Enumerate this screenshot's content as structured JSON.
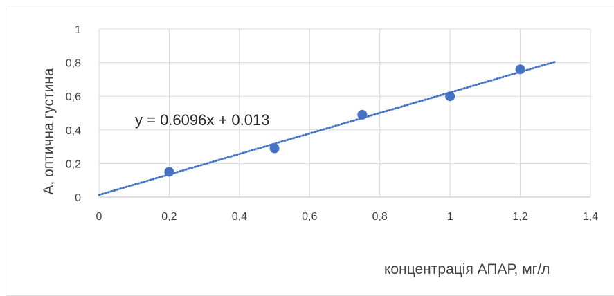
{
  "chart_data": {
    "type": "scatter",
    "title": "",
    "xlabel": "концентрація АПАР, мг/л",
    "ylabel": "А, оптична густина",
    "xlim": [
      0,
      1.4
    ],
    "ylim": [
      0,
      1
    ],
    "x_ticks": [
      "0",
      "0,2",
      "0,4",
      "0,6",
      "0,8",
      "1",
      "1,2",
      "1,4"
    ],
    "y_ticks": [
      "0",
      "0,2",
      "0,4",
      "0,6",
      "0,8",
      "1"
    ],
    "grid": true,
    "legend": "none",
    "series": [
      {
        "x": [
          0.2,
          0.5,
          0.75,
          1.0,
          1.2
        ],
        "y": [
          0.15,
          0.29,
          0.49,
          0.6,
          0.76
        ],
        "color": "#4472C4"
      }
    ],
    "trendline": {
      "type": "linear",
      "slope": 0.6096,
      "intercept": 0.013,
      "x_range": [
        0,
        1.3
      ],
      "style": "dotted",
      "color": "#4472C4",
      "label": "y = 0.6096x + 0.013"
    }
  }
}
